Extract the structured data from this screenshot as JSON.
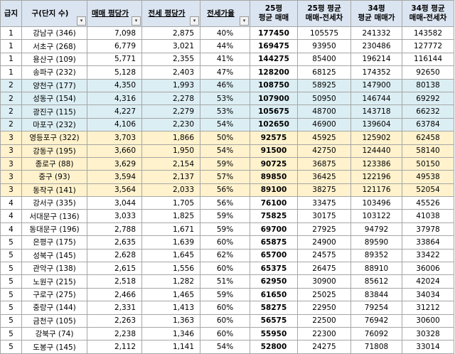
{
  "headers": {
    "grade": "급지",
    "district": "구(단지 수)",
    "sale_price": "매매 평당가",
    "jeonse_price": "전세 평당가",
    "jeonse_ratio": "전세가율",
    "p25_l1": "25평",
    "p25_l2": "평균 매매",
    "p25gap_l1": "25평 평균",
    "p25gap_l2": "매매-전세차",
    "p34_l1": "34평",
    "p34_l2": "평균 매매가",
    "p34gap_l1": "34평 평균",
    "p34gap_l2": "매매-전세차"
  },
  "filter_icon": "dropdown-filter-icon",
  "rows": [
    {
      "grade": "1",
      "district": "강남구 (346)",
      "sale": "7,098",
      "jeonse": "2,875",
      "ratio": "40%",
      "p25": "177450",
      "p25gap": "105575",
      "p34": "241332",
      "p34gap": "143582"
    },
    {
      "grade": "1",
      "district": "서초구 (268)",
      "sale": "6,779",
      "jeonse": "3,021",
      "ratio": "44%",
      "p25": "169475",
      "p25gap": "93950",
      "p34": "230486",
      "p34gap": "127772"
    },
    {
      "grade": "1",
      "district": "용산구 (109)",
      "sale": "5,771",
      "jeonse": "2,355",
      "ratio": "41%",
      "p25": "144275",
      "p25gap": "85400",
      "p34": "196214",
      "p34gap": "116144"
    },
    {
      "grade": "1",
      "district": "송파구 (232)",
      "sale": "5,128",
      "jeonse": "2,403",
      "ratio": "47%",
      "p25": "128200",
      "p25gap": "68125",
      "p34": "174352",
      "p34gap": "92650"
    },
    {
      "grade": "2",
      "district": "양천구 (177)",
      "sale": "4,350",
      "jeonse": "1,993",
      "ratio": "46%",
      "p25": "108750",
      "p25gap": "58925",
      "p34": "147900",
      "p34gap": "80138"
    },
    {
      "grade": "2",
      "district": "성동구 (154)",
      "sale": "4,316",
      "jeonse": "2,278",
      "ratio": "53%",
      "p25": "107900",
      "p25gap": "50950",
      "p34": "146744",
      "p34gap": "69292"
    },
    {
      "grade": "2",
      "district": "광진구 (115)",
      "sale": "4,227",
      "jeonse": "2,279",
      "ratio": "53%",
      "p25": "105675",
      "p25gap": "48700",
      "p34": "143718",
      "p34gap": "66232"
    },
    {
      "grade": "2",
      "district": "마포구 (232)",
      "sale": "4,106",
      "jeonse": "2,230",
      "ratio": "54%",
      "p25": "102650",
      "p25gap": "46900",
      "p34": "139604",
      "p34gap": "63784"
    },
    {
      "grade": "3",
      "district": "영등포구 (322)",
      "sale": "3,703",
      "jeonse": "1,866",
      "ratio": "50%",
      "p25": "92575",
      "p25gap": "45925",
      "p34": "125902",
      "p34gap": "62458"
    },
    {
      "grade": "3",
      "district": "강동구 (195)",
      "sale": "3,660",
      "jeonse": "1,950",
      "ratio": "54%",
      "p25": "91500",
      "p25gap": "42750",
      "p34": "124440",
      "p34gap": "58140"
    },
    {
      "grade": "3",
      "district": "종로구 (88)",
      "sale": "3,629",
      "jeonse": "2,154",
      "ratio": "59%",
      "p25": "90725",
      "p25gap": "36875",
      "p34": "123386",
      "p34gap": "50150"
    },
    {
      "grade": "3",
      "district": "중구 (93)",
      "sale": "3,594",
      "jeonse": "2,137",
      "ratio": "57%",
      "p25": "89850",
      "p25gap": "36425",
      "p34": "122196",
      "p34gap": "49538"
    },
    {
      "grade": "3",
      "district": "동작구 (141)",
      "sale": "3,564",
      "jeonse": "2,033",
      "ratio": "56%",
      "p25": "89100",
      "p25gap": "38275",
      "p34": "121176",
      "p34gap": "52054"
    },
    {
      "grade": "4",
      "district": "강서구 (335)",
      "sale": "3,044",
      "jeonse": "1,705",
      "ratio": "56%",
      "p25": "76100",
      "p25gap": "33475",
      "p34": "103496",
      "p34gap": "45526"
    },
    {
      "grade": "4",
      "district": "서대문구 (136)",
      "sale": "3,033",
      "jeonse": "1,825",
      "ratio": "59%",
      "p25": "75825",
      "p25gap": "30175",
      "p34": "103122",
      "p34gap": "41038"
    },
    {
      "grade": "4",
      "district": "동대문구 (196)",
      "sale": "2,788",
      "jeonse": "1,671",
      "ratio": "59%",
      "p25": "69700",
      "p25gap": "27925",
      "p34": "94792",
      "p34gap": "37978"
    },
    {
      "grade": "5",
      "district": "은평구 (175)",
      "sale": "2,635",
      "jeonse": "1,639",
      "ratio": "60%",
      "p25": "65875",
      "p25gap": "24900",
      "p34": "89590",
      "p34gap": "33864"
    },
    {
      "grade": "5",
      "district": "성북구 (145)",
      "sale": "2,628",
      "jeonse": "1,645",
      "ratio": "62%",
      "p25": "65700",
      "p25gap": "24575",
      "p34": "89352",
      "p34gap": "33422"
    },
    {
      "grade": "5",
      "district": "관악구 (138)",
      "sale": "2,615",
      "jeonse": "1,556",
      "ratio": "60%",
      "p25": "65375",
      "p25gap": "26475",
      "p34": "88910",
      "p34gap": "36006"
    },
    {
      "grade": "5",
      "district": "노원구 (215)",
      "sale": "2,518",
      "jeonse": "1,282",
      "ratio": "51%",
      "p25": "62950",
      "p25gap": "30900",
      "p34": "85612",
      "p34gap": "42024"
    },
    {
      "grade": "5",
      "district": "구로구 (275)",
      "sale": "2,466",
      "jeonse": "1,465",
      "ratio": "59%",
      "p25": "61650",
      "p25gap": "25025",
      "p34": "83844",
      "p34gap": "34034"
    },
    {
      "grade": "5",
      "district": "중랑구 (144)",
      "sale": "2,331",
      "jeonse": "1,413",
      "ratio": "60%",
      "p25": "58275",
      "p25gap": "22950",
      "p34": "79254",
      "p34gap": "31212"
    },
    {
      "grade": "5",
      "district": "금천구 (105)",
      "sale": "2,263",
      "jeonse": "1,363",
      "ratio": "60%",
      "p25": "56575",
      "p25gap": "22500",
      "p34": "76942",
      "p34gap": "30600"
    },
    {
      "grade": "5",
      "district": "강북구 (74)",
      "sale": "2,238",
      "jeonse": "1,346",
      "ratio": "60%",
      "p25": "55950",
      "p25gap": "22300",
      "p34": "76092",
      "p34gap": "30328"
    },
    {
      "grade": "5",
      "district": "도봉구 (145)",
      "sale": "2,112",
      "jeonse": "1,141",
      "ratio": "54%",
      "p25": "52800",
      "p25gap": "24275",
      "p34": "71808",
      "p34gap": "33014"
    }
  ]
}
